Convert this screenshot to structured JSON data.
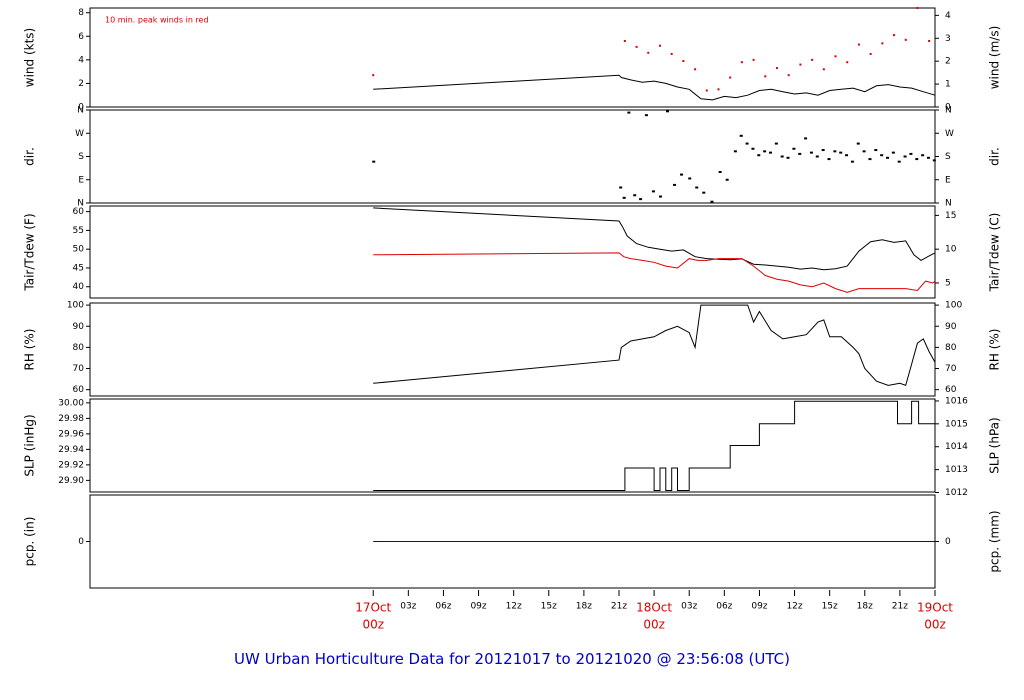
{
  "footer": {
    "title": "UW Urban Horticulture Data for 20121017  to  20121020 @ 23:56:08  (UTC)"
  },
  "chart_data": [
    {
      "id": "wind",
      "type": "line",
      "ylabel_left": "wind (kts)",
      "ylabel_right": "wind (m/s)",
      "ylim": [
        0,
        8.4
      ],
      "yticks_left": [
        "0",
        "2",
        "4",
        "6",
        "8"
      ],
      "yticks_right": [
        "0",
        "1",
        "2",
        "3",
        "4"
      ],
      "right_scale": "m/s",
      "annotation": "10 min. peak winds in red",
      "series": [
        {
          "name": "wind speed",
          "color": "#000000",
          "x": [
            0,
            21,
            21.2,
            22,
            23,
            24,
            25,
            26,
            27,
            28,
            29,
            30,
            31,
            32,
            33,
            34,
            35,
            36,
            37,
            38,
            39,
            40,
            41,
            42,
            43,
            44,
            45,
            46,
            47,
            48
          ],
          "values": [
            1.5,
            2.7,
            2.5,
            2.3,
            2.1,
            2.2,
            2.0,
            1.7,
            1.5,
            0.7,
            0.6,
            0.9,
            0.8,
            1.0,
            1.4,
            1.5,
            1.3,
            1.1,
            1.2,
            1.0,
            1.4,
            1.5,
            1.6,
            1.3,
            1.8,
            1.9,
            1.7,
            1.6,
            1.3,
            1.0
          ]
        },
        {
          "name": "10 min. peak winds",
          "color": "#dd0000",
          "x": [
            0,
            21.5,
            22.5,
            23.5,
            24.5,
            25.5,
            26.5,
            27.5,
            28.5,
            29.5,
            30.5,
            31.5,
            32.5,
            33.5,
            34.5,
            35.5,
            36.5,
            37.5,
            38.5,
            39.5,
            40.5,
            41.5,
            42.5,
            43.5,
            44.5,
            45.5,
            46.5,
            47.5
          ],
          "values": [
            2.7,
            5.6,
            5.1,
            4.6,
            5.2,
            4.5,
            3.9,
            3.2,
            1.4,
            1.5,
            2.5,
            3.8,
            4.0,
            2.6,
            3.3,
            2.7,
            3.6,
            4.0,
            3.2,
            4.3,
            3.8,
            5.3,
            4.5,
            5.4,
            6.1,
            5.7,
            8.4,
            5.6
          ]
        }
      ]
    },
    {
      "id": "dir",
      "type": "scatter",
      "ylabel_left": "dir.",
      "ylabel_right": "dir.",
      "ylim": [
        0,
        360
      ],
      "yticks_left": [
        "N",
        "E",
        "S",
        "W",
        "N"
      ],
      "yticks_right": [
        "N",
        "E",
        "S",
        "W",
        "N"
      ],
      "series": [
        {
          "name": "direction",
          "color": "#000000",
          "x": [
            0,
            21.1,
            21.4,
            21.8,
            22.3,
            22.8,
            23.3,
            23.9,
            24.5,
            25.1,
            25.7,
            26.3,
            27.0,
            27.6,
            28.2,
            28.9,
            29.6,
            30.2,
            30.9,
            31.4,
            31.9,
            32.4,
            32.9,
            33.4,
            33.9,
            34.4,
            34.9,
            35.4,
            35.9,
            36.4,
            36.9,
            37.4,
            37.9,
            38.4,
            38.9,
            39.4,
            39.9,
            40.4,
            40.9,
            41.4,
            41.9,
            42.4,
            42.9,
            43.4,
            43.9,
            44.4,
            44.9,
            45.4,
            45.9,
            46.4,
            46.9,
            47.4,
            47.9
          ],
          "values": [
            160,
            60,
            20,
            350,
            30,
            15,
            340,
            45,
            25,
            355,
            70,
            110,
            95,
            60,
            40,
            5,
            120,
            90,
            200,
            260,
            230,
            210,
            185,
            200,
            195,
            230,
            180,
            175,
            210,
            190,
            250,
            195,
            180,
            205,
            170,
            200,
            195,
            185,
            160,
            230,
            200,
            170,
            205,
            185,
            175,
            195,
            160,
            180,
            190,
            170,
            185,
            175,
            165
          ]
        }
      ]
    },
    {
      "id": "temp",
      "type": "line",
      "ylabel_left": "Tair/Tdew (F)",
      "ylabel_right": "Tair/Tdew (C)",
      "ylim": [
        37,
        61.5
      ],
      "yticks_left": [
        "40",
        "45",
        "50",
        "55",
        "60"
      ],
      "yticks_right": [
        "5",
        "10",
        "15"
      ],
      "series": [
        {
          "name": "Tair",
          "color": "#000000",
          "x": [
            0,
            21,
            21.3,
            21.7,
            22.5,
            23.5,
            24.5,
            25.5,
            26.5,
            27.5,
            28.5,
            29.5,
            30.5,
            31.5,
            32.5,
            33.5,
            34.5,
            35.5,
            36.5,
            37.5,
            38.5,
            39.5,
            40.5,
            41.5,
            42.5,
            43.5,
            44.5,
            45.5,
            46.2,
            46.8,
            47.5,
            48
          ],
          "values": [
            61,
            57.5,
            56,
            53.5,
            51.5,
            50.5,
            50,
            49.5,
            49.8,
            48,
            47.5,
            47.3,
            47.2,
            47.4,
            46,
            45.8,
            45.5,
            45.2,
            44.7,
            45,
            44.5,
            44.8,
            45.5,
            49.5,
            52,
            52.5,
            51.8,
            52.2,
            48.5,
            47,
            48.2,
            49
          ]
        },
        {
          "name": "Tdew",
          "color": "#dd0000",
          "x": [
            0,
            21,
            21.4,
            22,
            23,
            24,
            25,
            26,
            27,
            27.7,
            28.5,
            29.5,
            30.5,
            31.5,
            32.5,
            33.5,
            34.5,
            35.5,
            36.5,
            37.5,
            38.5,
            39.5,
            40.5,
            41.5,
            42.5,
            43.5,
            44.5,
            45.5,
            46.5,
            47.2,
            47.8,
            48
          ],
          "values": [
            48.5,
            49,
            48,
            47.5,
            47,
            46.5,
            45.5,
            45,
            47.5,
            47,
            47,
            47.5,
            47.5,
            47.5,
            45.5,
            43,
            42,
            41.5,
            40.5,
            40,
            41,
            39.5,
            38.5,
            39.5,
            39.5,
            39.5,
            39.5,
            39.5,
            39,
            41.5,
            41,
            41.5
          ]
        }
      ]
    },
    {
      "id": "rh",
      "type": "line",
      "ylabel_left": "RH (%)",
      "ylabel_right": "RH (%)",
      "ylim": [
        57,
        101
      ],
      "yticks_left": [
        "60",
        "70",
        "80",
        "90",
        "100"
      ],
      "yticks_right": [
        "60",
        "70",
        "80",
        "90",
        "100"
      ],
      "series": [
        {
          "name": "RH",
          "color": "#000000",
          "x": [
            0,
            21,
            21.2,
            22,
            23,
            24,
            25,
            26,
            27,
            27.5,
            28,
            29,
            30,
            31,
            32,
            32.5,
            33,
            34,
            35,
            36,
            37,
            38,
            38.5,
            39,
            40,
            41,
            41.5,
            42,
            43,
            44,
            45,
            45.5,
            46,
            46.5,
            47,
            47.5,
            48
          ],
          "values": [
            63,
            74,
            80,
            83,
            84,
            85,
            88,
            90,
            87,
            80,
            100,
            100,
            100,
            100,
            100,
            92,
            97,
            88,
            84,
            85,
            86,
            92,
            93,
            85,
            85,
            80,
            77,
            70,
            64,
            62,
            63,
            62,
            72,
            82,
            84,
            78,
            73
          ]
        }
      ]
    },
    {
      "id": "slp",
      "type": "line",
      "ylabel_left": "SLP (inHg)",
      "ylabel_right": "SLP (hPa)",
      "ylim": [
        29.885,
        30.005
      ],
      "yticks_left": [
        "29.90",
        "29.92",
        "29.94",
        "29.96",
        "29.98",
        "30.00"
      ],
      "yticks_right": [
        "1012",
        "1013",
        "1014",
        "1015",
        "1016"
      ],
      "series": [
        {
          "name": "SLP",
          "color": "#000000",
          "x": [
            0,
            21.5,
            21.5,
            24.0,
            24.0,
            24.5,
            24.5,
            25.0,
            25.0,
            25.5,
            25.5,
            26.0,
            26.0,
            27.0,
            27.0,
            30.5,
            30.5,
            33.0,
            33.0,
            36.0,
            36.0,
            44.8,
            44.8,
            46.0,
            46.0,
            46.6,
            46.6,
            47.0,
            47.0,
            48.0
          ],
          "values": [
            29.887,
            29.887,
            29.916,
            29.916,
            29.887,
            29.887,
            29.916,
            29.916,
            29.887,
            29.887,
            29.916,
            29.916,
            29.887,
            29.887,
            29.916,
            29.916,
            29.945,
            29.945,
            29.973,
            29.973,
            30.002,
            30.002,
            29.973,
            29.973,
            30.002,
            30.002,
            29.973,
            29.973,
            29.973,
            29.973
          ]
        }
      ]
    },
    {
      "id": "pcp",
      "type": "line",
      "ylabel_left": "pcp. (in)",
      "ylabel_right": "pcp. (mm)",
      "ylim": [
        -1,
        1
      ],
      "yticks_left": [
        "0"
      ],
      "yticks_right": [
        "0"
      ],
      "series": [
        {
          "name": "pcp",
          "color": "#0000cc",
          "x": [
            0,
            48
          ],
          "values": [
            0,
            0
          ]
        }
      ]
    }
  ],
  "xaxis": {
    "range_hours": [
      -24.2,
      48
    ],
    "ticks": [
      {
        "h": 0,
        "label": "17Oct",
        "label2": "00z",
        "red": true
      },
      {
        "h": 3,
        "label": "03z"
      },
      {
        "h": 6,
        "label": "06z"
      },
      {
        "h": 9,
        "label": "09z"
      },
      {
        "h": 12,
        "label": "12z"
      },
      {
        "h": 15,
        "label": "15z"
      },
      {
        "h": 18,
        "label": "18z"
      },
      {
        "h": 21,
        "label": "21z"
      },
      {
        "h": 24,
        "label": "18Oct",
        "label2": "00z",
        "red": true
      },
      {
        "h": 27,
        "label": "03z"
      },
      {
        "h": 30,
        "label": "06z"
      },
      {
        "h": 33,
        "label": "09z"
      },
      {
        "h": 36,
        "label": "12z"
      },
      {
        "h": 39,
        "label": "15z"
      },
      {
        "h": 42,
        "label": "18z"
      },
      {
        "h": 45,
        "label": "21z"
      },
      {
        "h": 48,
        "label": "19Oct",
        "label2": "00z",
        "red": true
      }
    ]
  }
}
